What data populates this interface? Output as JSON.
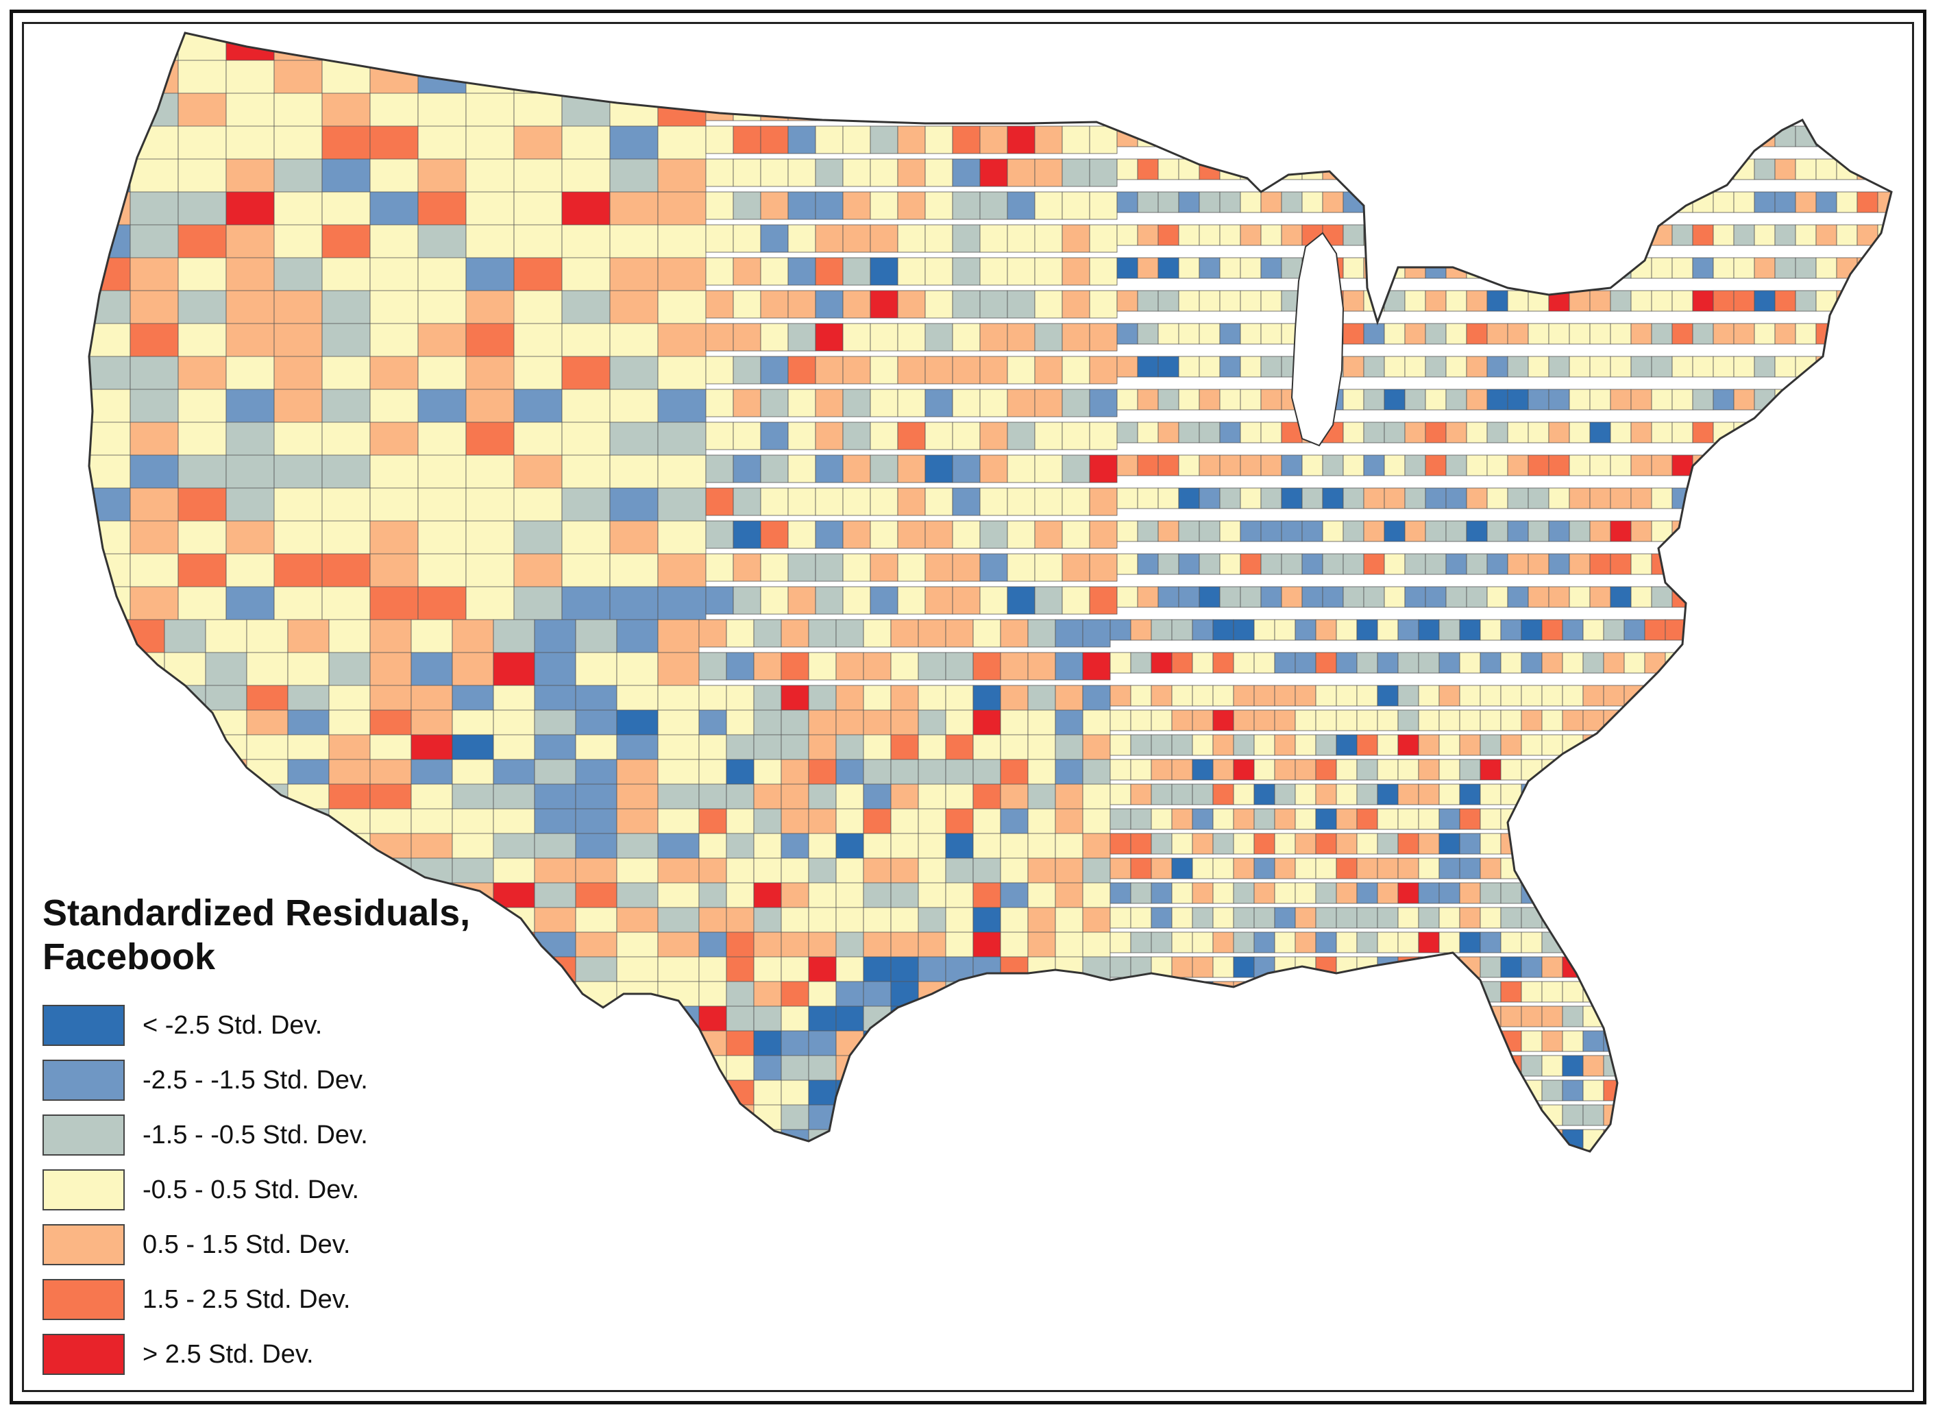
{
  "legend": {
    "title_line1": "Standardized Residuals,",
    "title_line2": "Facebook",
    "items": [
      {
        "label": "< -2.5 Std. Dev.",
        "color": "#2e6fb3"
      },
      {
        "label": "-2.5 - -1.5 Std. Dev.",
        "color": "#6f97c4"
      },
      {
        "label": "-1.5 - -0.5 Std. Dev.",
        "color": "#b9c9c3"
      },
      {
        "label": "-0.5 - 0.5 Std. Dev.",
        "color": "#fcf7c0"
      },
      {
        "label": "0.5 - 1.5 Std. Dev.",
        "color": "#fbb684"
      },
      {
        "label": "1.5 - 2.5 Std. Dev.",
        "color": "#f7774f"
      },
      {
        "label": "> 2.5 Std. Dev.",
        "color": "#e8232a"
      }
    ]
  },
  "map": {
    "region": "Contiguous United States counties",
    "background_color": "#ffffff",
    "boundary_color": "#444444"
  }
}
